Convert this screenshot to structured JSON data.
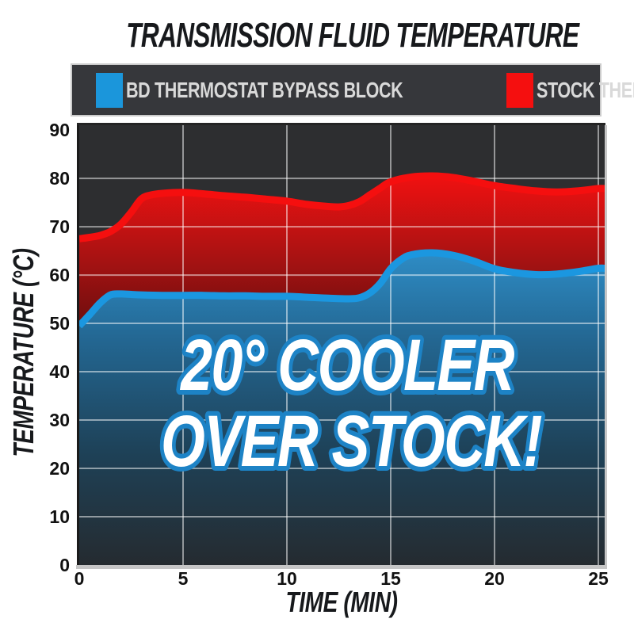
{
  "title": "TRANSMISSION FLUID TEMPERATURE",
  "legend": {
    "items": [
      {
        "label": "BD THERMOSTAT BYPASS BLOCK",
        "color": "#1b96db"
      },
      {
        "label": "STOCK THERMOSTAT",
        "color": "#f50f0f"
      }
    ]
  },
  "overlay": {
    "line1": "20° COOLER",
    "line2": "OVER STOCK!"
  },
  "colors": {
    "plot_background": "#2d2e30",
    "legend_background": "#36373b",
    "gridline": "rgba(255,255,255,0.5)",
    "blue_line": "#1b97e0",
    "red_line": "#f50f0f",
    "red_area_top": "#ee1111",
    "red_area_mid": "#a31212",
    "red_area_bottom": "#5a0c0c",
    "blue_area_top": "#2f8fc9",
    "blue_area_mid1": "#236691",
    "blue_area_mid2": "#1e4157",
    "blue_area_bottom": "#252b30",
    "callout_fill": "#ffffff",
    "callout_outline": "#1d83c6"
  },
  "chart_data": {
    "type": "area",
    "title": "TRANSMISSION FLUID TEMPERATURE",
    "xlabel": "TIME (MIN)",
    "ylabel": "TEMPERATURE (°C)",
    "xlim": [
      0,
      25
    ],
    "ylim": [
      0,
      90
    ],
    "xticks": [
      0,
      5,
      10,
      15,
      20,
      25
    ],
    "yticks": [
      0,
      10,
      20,
      30,
      40,
      50,
      60,
      70,
      80,
      90
    ],
    "grid": true,
    "legend_position": "top",
    "annotation": "20° COOLER OVER STOCK!",
    "series": [
      {
        "name": "BD THERMOSTAT BYPASS BLOCK",
        "color": "#1b97e0",
        "points": [
          [
            0,
            49.5
          ],
          [
            0.5,
            51.8
          ],
          [
            1,
            54.2
          ],
          [
            1.5,
            55.9
          ],
          [
            2,
            56.1
          ],
          [
            2.5,
            56.0
          ],
          [
            3,
            55.9
          ],
          [
            4,
            55.8
          ],
          [
            5,
            55.8
          ],
          [
            6,
            55.8
          ],
          [
            7,
            55.7
          ],
          [
            8,
            55.7
          ],
          [
            9,
            55.6
          ],
          [
            10,
            55.6
          ],
          [
            11,
            55.4
          ],
          [
            12,
            55.2
          ],
          [
            13,
            55.1
          ],
          [
            13.5,
            55.3
          ],
          [
            14,
            56.3
          ],
          [
            14.5,
            58.3
          ],
          [
            15,
            61.3
          ],
          [
            15.5,
            63.2
          ],
          [
            16,
            64.2
          ],
          [
            17,
            64.6
          ],
          [
            18,
            64.1
          ],
          [
            19,
            62.9
          ],
          [
            20,
            61.3
          ],
          [
            21,
            60.5
          ],
          [
            22,
            60.1
          ],
          [
            23,
            60.2
          ],
          [
            24,
            60.7
          ],
          [
            25,
            61.4
          ]
        ]
      },
      {
        "name": "STOCK THERMOSTAT",
        "color": "#f50f0f",
        "points": [
          [
            0,
            67.5
          ],
          [
            0.5,
            67.8
          ],
          [
            1,
            68.2
          ],
          [
            1.5,
            69.0
          ],
          [
            2,
            70.5
          ],
          [
            2.5,
            73.0
          ],
          [
            3,
            75.8
          ],
          [
            3.5,
            76.6
          ],
          [
            4,
            76.9
          ],
          [
            5,
            77.1
          ],
          [
            6,
            76.8
          ],
          [
            7,
            76.4
          ],
          [
            8,
            76.1
          ],
          [
            9,
            75.7
          ],
          [
            10,
            75.3
          ],
          [
            11,
            74.6
          ],
          [
            12,
            74.2
          ],
          [
            12.5,
            74.1
          ],
          [
            13,
            74.4
          ],
          [
            13.5,
            75.2
          ],
          [
            14,
            76.6
          ],
          [
            14.5,
            78.0
          ],
          [
            15,
            79.3
          ],
          [
            16,
            80.3
          ],
          [
            17,
            80.5
          ],
          [
            18,
            80.2
          ],
          [
            19,
            79.4
          ],
          [
            20,
            78.5
          ],
          [
            21,
            77.9
          ],
          [
            22,
            77.4
          ],
          [
            23,
            77.2
          ],
          [
            24,
            77.4
          ],
          [
            25,
            77.9
          ]
        ]
      }
    ]
  }
}
